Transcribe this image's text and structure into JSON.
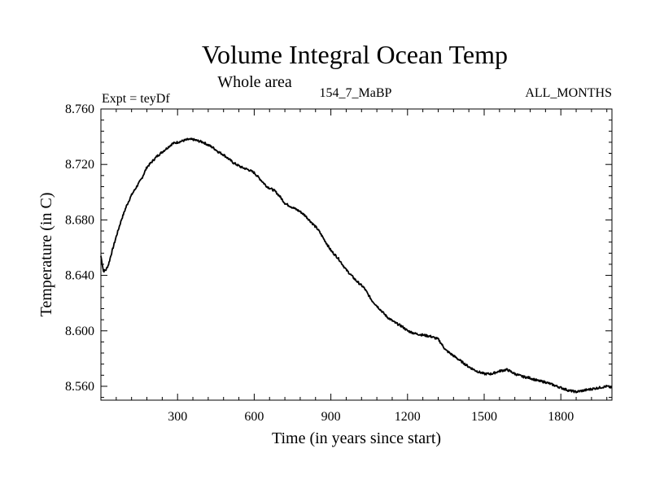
{
  "chart_data": {
    "type": "line",
    "title": "Volume Integral Ocean Temp",
    "subtitle": "Whole area",
    "expt_label": "Expt = teyDf",
    "run_label": "154_7_MaBP",
    "months_label": "ALL_MONTHS",
    "xlabel": "Time (in years since start)",
    "ylabel": "Temperature (in C)",
    "xlim": [
      0,
      2000
    ],
    "ylim": [
      8.55,
      8.76
    ],
    "x_ticks": [
      300,
      600,
      900,
      1200,
      1500,
      1800
    ],
    "x_tick_labels": [
      "300",
      "600",
      "900",
      "1200",
      "1500",
      "1800"
    ],
    "y_ticks": [
      8.56,
      8.6,
      8.64,
      8.68,
      8.72,
      8.76
    ],
    "y_tick_labels": [
      "8.560",
      "8.600",
      "8.640",
      "8.680",
      "8.720",
      "8.760"
    ],
    "series": [
      {
        "name": "Volume Integral Ocean Temp",
        "x": [
          0,
          10,
          20,
          30,
          40,
          60,
          80,
          100,
          120,
          140,
          160,
          180,
          200,
          220,
          240,
          260,
          280,
          300,
          320,
          340,
          360,
          380,
          400,
          420,
          440,
          460,
          480,
          500,
          520,
          550,
          580,
          600,
          620,
          650,
          680,
          700,
          720,
          750,
          780,
          800,
          820,
          850,
          880,
          900,
          930,
          960,
          1000,
          1030,
          1060,
          1090,
          1120,
          1150,
          1180,
          1200,
          1230,
          1260,
          1290,
          1320,
          1350,
          1380,
          1410,
          1440,
          1470,
          1500,
          1530,
          1560,
          1590,
          1620,
          1650,
          1680,
          1710,
          1740,
          1770,
          1800,
          1830,
          1860,
          1890,
          1920,
          1950,
          1980,
          2000
        ],
        "values": [
          8.654,
          8.643,
          8.644,
          8.648,
          8.655,
          8.668,
          8.68,
          8.69,
          8.698,
          8.704,
          8.71,
          8.718,
          8.722,
          8.726,
          8.729,
          8.732,
          8.735,
          8.736,
          8.737,
          8.738,
          8.738,
          8.737,
          8.736,
          8.734,
          8.732,
          8.729,
          8.727,
          8.724,
          8.721,
          8.718,
          8.716,
          8.714,
          8.71,
          8.704,
          8.701,
          8.697,
          8.692,
          8.689,
          8.686,
          8.683,
          8.679,
          8.673,
          8.664,
          8.658,
          8.652,
          8.644,
          8.636,
          8.631,
          8.622,
          8.616,
          8.61,
          8.606,
          8.603,
          8.6,
          8.598,
          8.597,
          8.596,
          8.594,
          8.586,
          8.582,
          8.578,
          8.574,
          8.571,
          8.569,
          8.569,
          8.571,
          8.572,
          8.569,
          8.567,
          8.566,
          8.564,
          8.563,
          8.561,
          8.559,
          8.557,
          8.556,
          8.557,
          8.558,
          8.559,
          8.56,
          8.559
        ]
      }
    ]
  }
}
